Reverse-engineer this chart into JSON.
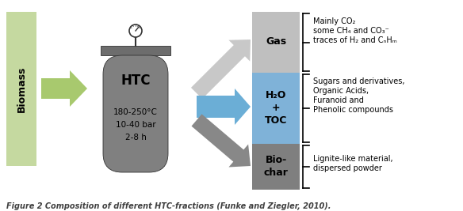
{
  "title": "Figure 2 Composition of different HTC-fractions (Funke and Ziegler, 2010).",
  "biomass_color": "#c5d9a0",
  "htc_body_color": "#808080",
  "htc_cap_color": "#6d6d6d",
  "gas_box_color": "#bfbfbf",
  "water_box_color": "#7fb2d8",
  "biochar_box_color": "#7f7f7f",
  "arrow_green_color": "#a8c96e",
  "arrow_lightgray_color": "#c8c8c8",
  "arrow_blue_color": "#6baed6",
  "arrow_darkgray_color": "#888888",
  "background_color": "#ffffff",
  "gas_label": "Gas",
  "water_label": "H₂O\n+\nTOC",
  "biochar_label": "Bio-\nchar",
  "biomass_label": "Biomass",
  "htc_label": "HTC",
  "htc_conditions": "180-250°C\n10-40 bar\n2-8 h",
  "gas_desc_line1": "Mainly CO₂",
  "gas_desc_line2": "some CH₄ and CO₃⁻",
  "gas_desc_line3": "traces of H₂ and CₙHₘ",
  "water_desc_line1": "Sugars and derivatives,",
  "water_desc_line2": "Organic Acids,",
  "water_desc_line3": "Furanoid and",
  "water_desc_line4": "Phenolic compounds",
  "biochar_desc_line1": "Lignite-like material,",
  "biochar_desc_line2": "dispersed powder"
}
